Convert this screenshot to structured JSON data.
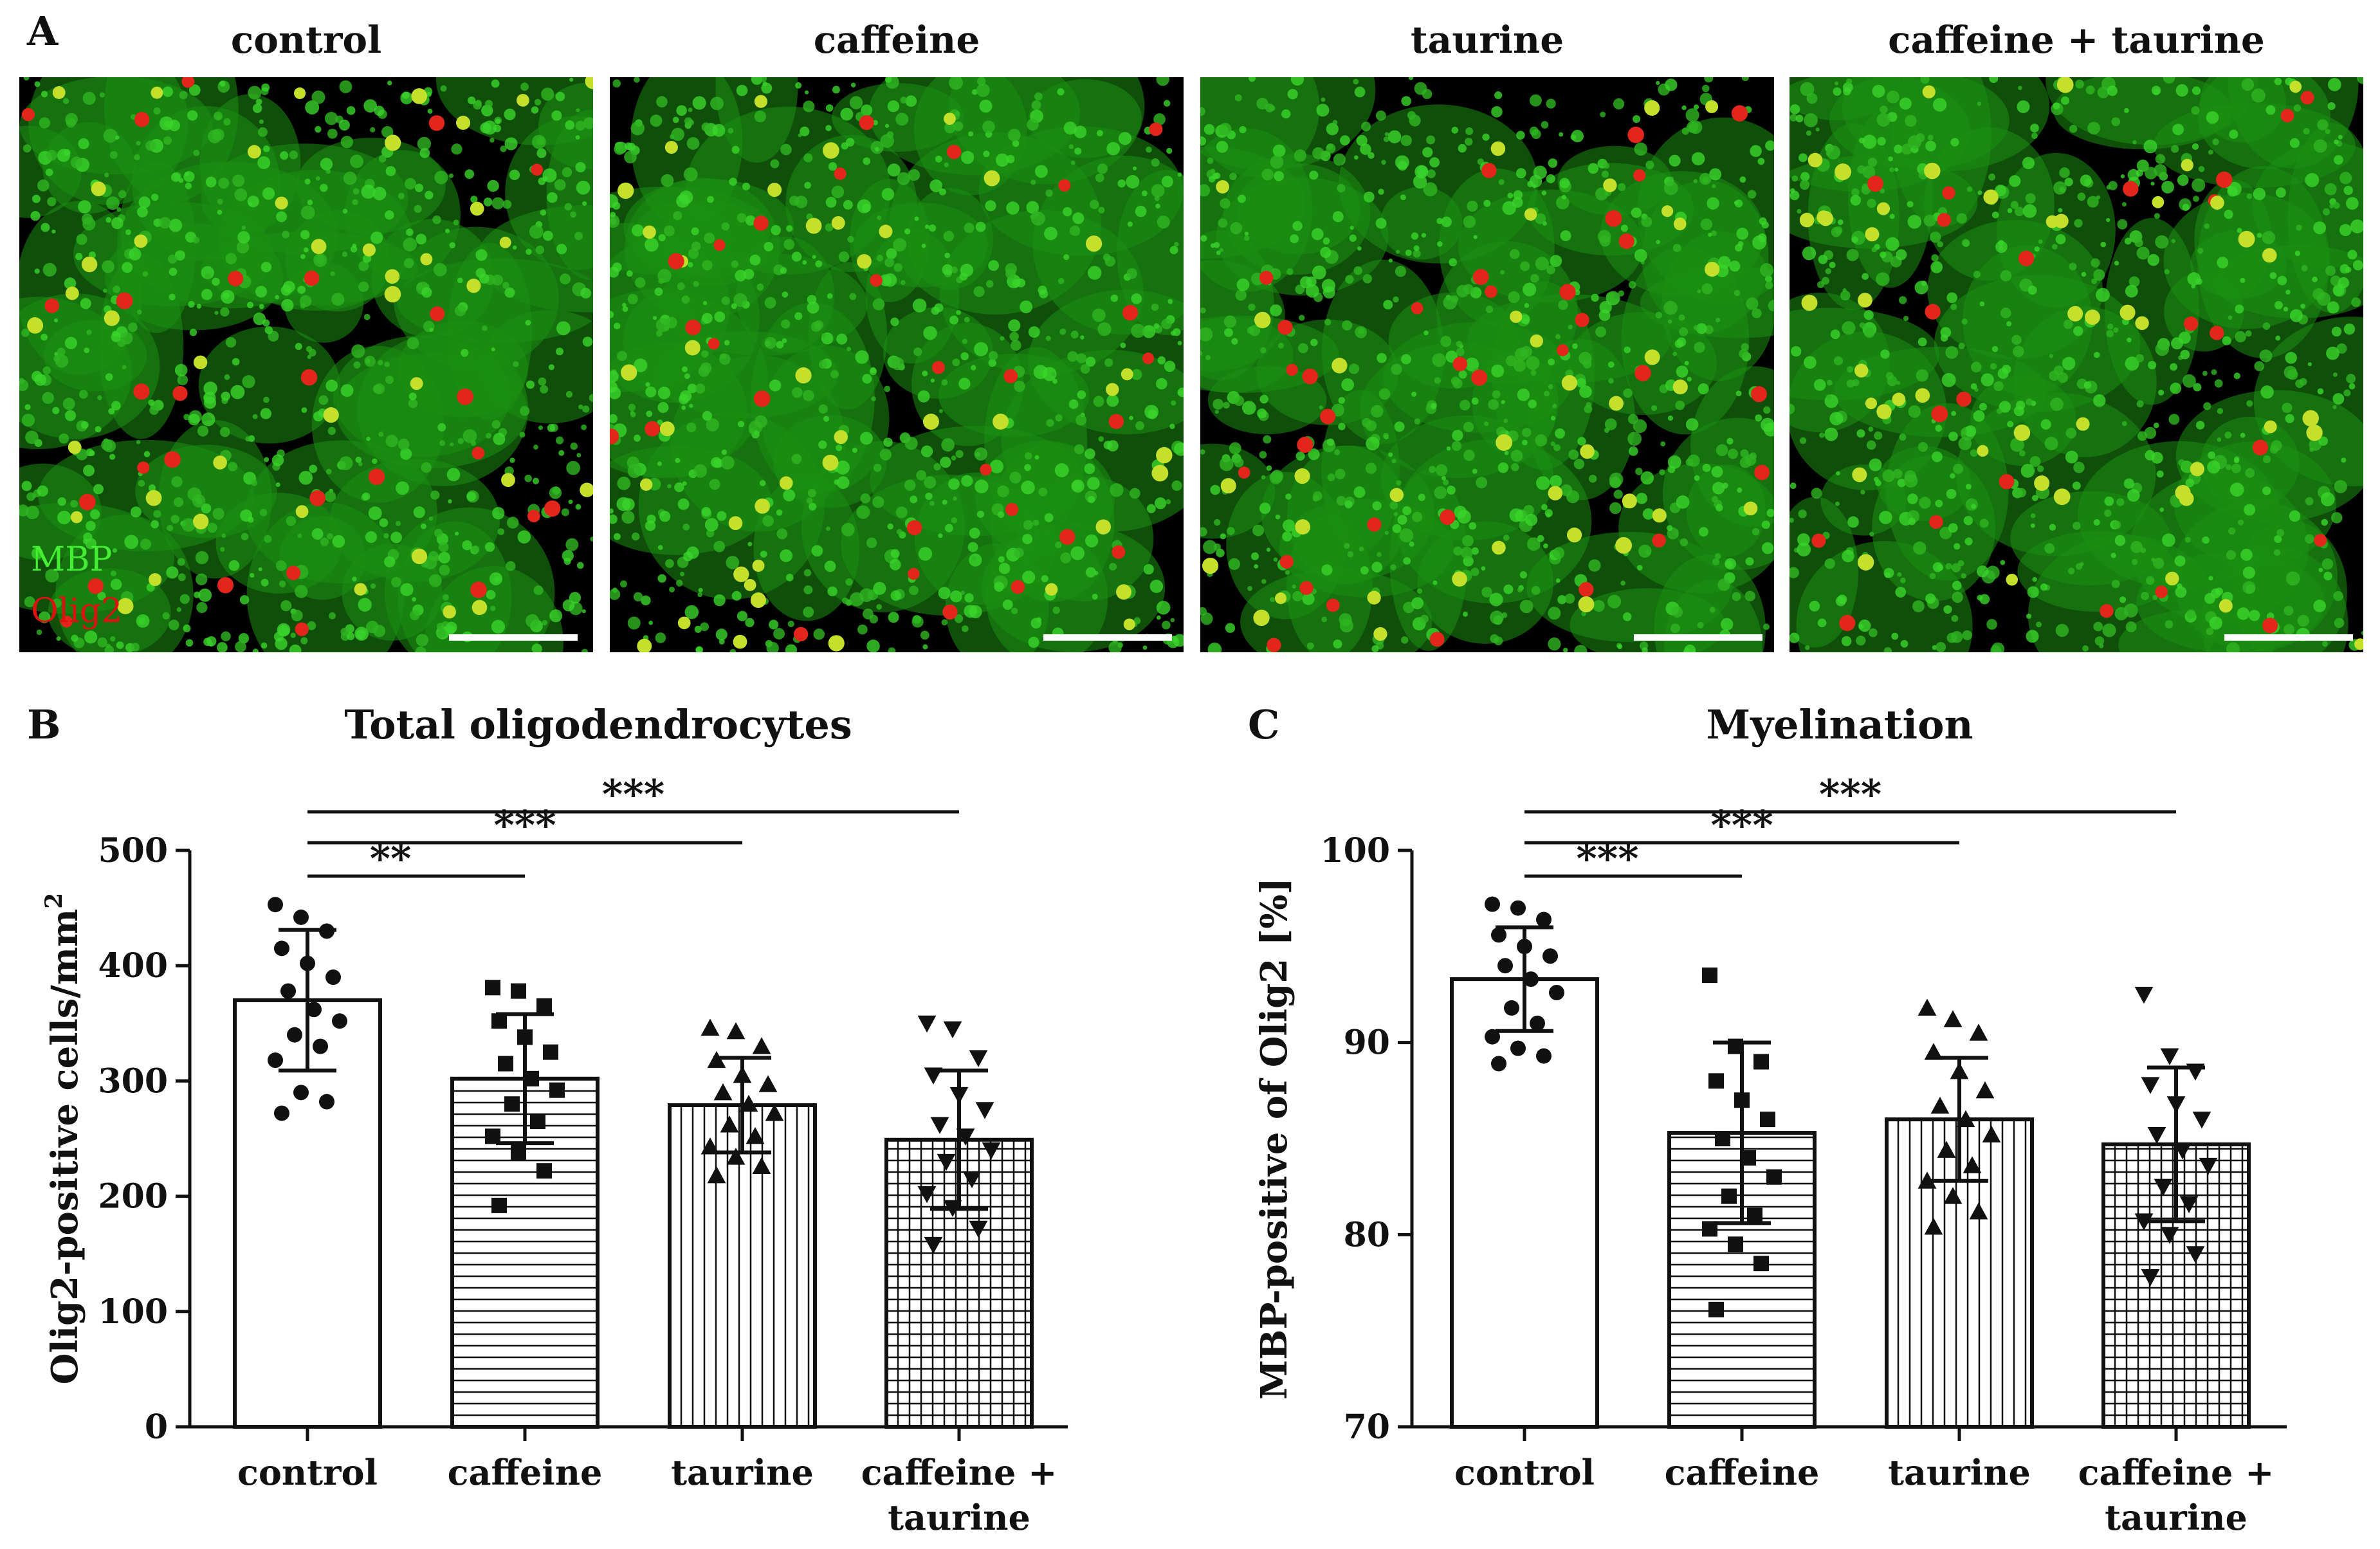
{
  "panels": {
    "A": "A",
    "B": "B",
    "C": "C"
  },
  "micrographs": [
    {
      "title": "control"
    },
    {
      "title": "caffeine"
    },
    {
      "title": "taurine"
    },
    {
      "title": "caffeine + taurine"
    }
  ],
  "stain_labels": {
    "mbp": "MBP",
    "olig2": "Olig2",
    "mbp_color": "#44ee33",
    "olig2_color": "#dd1111"
  },
  "chart_data": [
    {
      "type": "bar",
      "title": "Total oligodendrocytes",
      "ylabel": "Olig2-positive cells/mm",
      "ylabel_superscript": "2",
      "categories": [
        [
          "control"
        ],
        [
          "caffeine"
        ],
        [
          "taurine"
        ],
        [
          "caffeine +",
          "taurine"
        ]
      ],
      "patterns": [
        "none",
        "horizontal",
        "vertical",
        "grid"
      ],
      "markers": [
        "circle",
        "square",
        "triangle-up",
        "triangle-down"
      ],
      "ylim": [
        0,
        500
      ],
      "yticks": [
        0,
        100,
        200,
        300,
        400,
        500
      ],
      "values": [
        370,
        302,
        279,
        249
      ],
      "sd": [
        61,
        56,
        41,
        60
      ],
      "points": [
        [
          453,
          442,
          430,
          415,
          402,
          390,
          378,
          362,
          352,
          340,
          330,
          318,
          290,
          282,
          272
        ],
        [
          381,
          378,
          365,
          352,
          338,
          325,
          315,
          302,
          292,
          280,
          265,
          252,
          238,
          222,
          192
        ],
        [
          346,
          343,
          330,
          318,
          305,
          297,
          290,
          280,
          272,
          262,
          252,
          243,
          234,
          226,
          218
        ],
        [
          350,
          345,
          320,
          305,
          288,
          275,
          262,
          252,
          240,
          230,
          215,
          202,
          190,
          172,
          158
        ]
      ],
      "significance": [
        {
          "from": 0,
          "to": 1,
          "label": "**"
        },
        {
          "from": 0,
          "to": 2,
          "label": "***"
        },
        {
          "from": 0,
          "to": 3,
          "label": "***"
        }
      ]
    },
    {
      "type": "bar",
      "title": "Myelination",
      "ylabel": "MBP-positive of Olig2 [%]",
      "categories": [
        [
          "control"
        ],
        [
          "caffeine"
        ],
        [
          "taurine"
        ],
        [
          "caffeine +",
          "taurine"
        ]
      ],
      "patterns": [
        "none",
        "horizontal",
        "vertical",
        "grid"
      ],
      "markers": [
        "circle",
        "square",
        "triangle-up",
        "triangle-down"
      ],
      "ylim": [
        70,
        100
      ],
      "yticks": [
        70,
        80,
        90,
        100
      ],
      "values": [
        93.3,
        85.3,
        86.0,
        84.7
      ],
      "sd": [
        2.7,
        4.7,
        3.2,
        4.0
      ],
      "points": [
        [
          97.2,
          97.0,
          96.4,
          95.6,
          95.0,
          94.5,
          94.0,
          93.3,
          92.6,
          91.8,
          91.0,
          90.3,
          89.7,
          89.3,
          88.9
        ],
        [
          93.5,
          89.8,
          89.0,
          88.0,
          87.0,
          86.0,
          85.0,
          84.0,
          83.0,
          82.0,
          81.0,
          80.3,
          79.5,
          78.5,
          76.1
        ],
        [
          91.8,
          91.2,
          90.5,
          89.5,
          88.5,
          87.5,
          86.7,
          86.0,
          85.2,
          84.4,
          83.6,
          82.8,
          82.0,
          81.2,
          80.4
        ],
        [
          92.5,
          89.3,
          88.5,
          87.8,
          86.8,
          86.0,
          85.2,
          84.4,
          83.6,
          82.5,
          81.6,
          80.7,
          80.0,
          79.0,
          77.8
        ]
      ],
      "significance": [
        {
          "from": 0,
          "to": 1,
          "label": "***"
        },
        {
          "from": 0,
          "to": 2,
          "label": "***"
        },
        {
          "from": 0,
          "to": 3,
          "label": "***"
        }
      ]
    }
  ]
}
